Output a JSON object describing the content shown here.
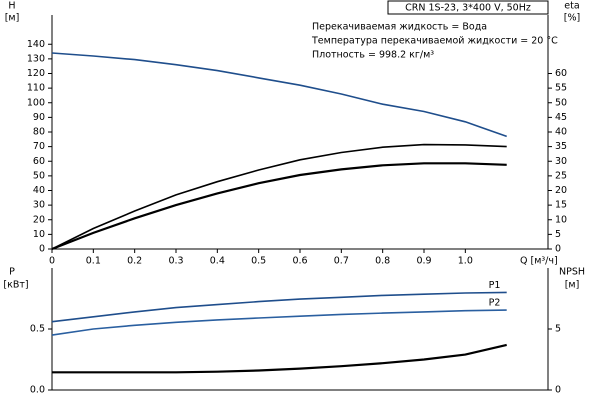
{
  "chart_data": [
    {
      "type": "line",
      "title": "CRN 1S-23, 3*400 V, 50Hz",
      "annotations": [
        "Перекачиваемая жидкость = Вода",
        "Температура перекачиваемой жидкости = 20 °C",
        "Плотность = 998.2 кг/м³"
      ],
      "xlabel": "Q [м³/ч]",
      "ylabel": "H",
      "yunit": "[м]",
      "y2label": "eta",
      "y2unit": "[%]",
      "x": [
        0,
        0.1,
        0.2,
        0.3,
        0.4,
        0.5,
        0.6,
        0.7,
        0.8,
        0.9,
        1.0,
        1.1
      ],
      "xlim": [
        0,
        1.2
      ],
      "xticks": [
        0,
        0.1,
        0.2,
        0.3,
        0.4,
        0.5,
        0.6,
        0.7,
        0.8,
        0.9,
        {
          "value": 1.0,
          "label": "1.0"
        }
      ],
      "ylim": [
        0,
        160
      ],
      "yticks": [
        0,
        10,
        20,
        30,
        40,
        50,
        60,
        70,
        80,
        90,
        100,
        110,
        120,
        130,
        140
      ],
      "y2lim": [
        0,
        80
      ],
      "y2ticks": [
        0,
        5,
        10,
        15,
        20,
        25,
        30,
        35,
        40,
        45,
        50,
        55,
        60
      ],
      "series": [
        {
          "color": "#1f4e8c",
          "values": [
            134,
            132,
            129.5,
            126,
            122,
            117,
            112,
            106,
            99,
            94,
            87,
            77
          ]
        },
        {
          "color": "#000000",
          "axis": "y2",
          "values": [
            0,
            7,
            13,
            18.5,
            23,
            27,
            30.5,
            33,
            34.8,
            35.7,
            35.6,
            35
          ]
        },
        {
          "color": "#000000",
          "axis": "y2",
          "values": [
            0,
            5.5,
            10.5,
            15,
            19,
            22.5,
            25.3,
            27.2,
            28.6,
            29.3,
            29.3,
            28.8
          ]
        }
      ]
    },
    {
      "type": "line",
      "ylabel": "P",
      "yunit": "[кВт]",
      "y2label": "NPSH",
      "y2unit": "[м]",
      "x": [
        0,
        0.1,
        0.2,
        0.3,
        0.4,
        0.5,
        0.6,
        0.7,
        0.8,
        0.9,
        1.0,
        1.1
      ],
      "xlim": [
        0,
        1.2
      ],
      "ylim": [
        0,
        1
      ],
      "yticks": [
        {
          "value": 0,
          "label": "0.0"
        },
        0.5
      ],
      "y2lim": [
        0,
        10
      ],
      "y2ticks": [
        0,
        5
      ],
      "series": [
        {
          "name": "P1",
          "color": "#1f4e8c",
          "values": [
            0.56,
            0.6,
            0.64,
            0.675,
            0.7,
            0.725,
            0.745,
            0.76,
            0.775,
            0.785,
            0.795,
            0.8
          ]
        },
        {
          "name": "P2",
          "color": "#2a5fa0",
          "values": [
            0.45,
            0.5,
            0.53,
            0.555,
            0.575,
            0.59,
            0.605,
            0.62,
            0.63,
            0.64,
            0.65,
            0.655
          ]
        },
        {
          "color": "#000000",
          "axis": "y2",
          "values": [
            1.45,
            1.45,
            1.45,
            1.45,
            1.5,
            1.6,
            1.75,
            1.95,
            2.2,
            2.5,
            2.9,
            3.7
          ]
        }
      ]
    }
  ]
}
